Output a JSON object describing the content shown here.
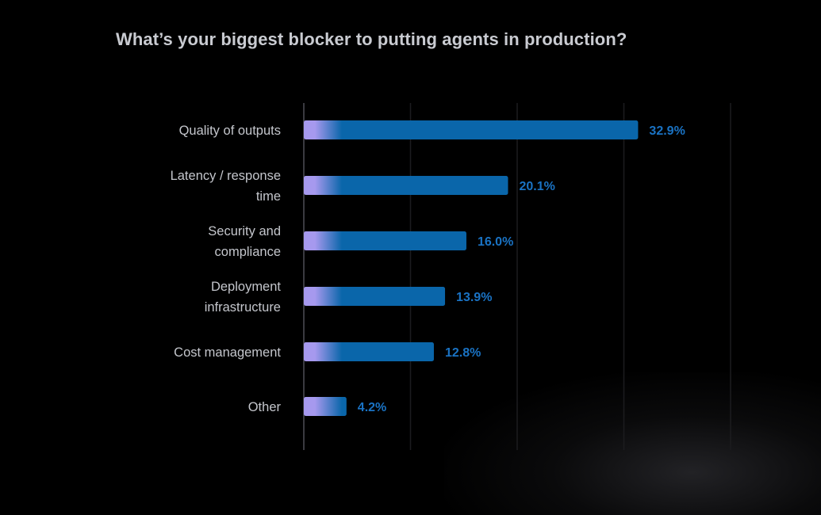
{
  "chart_data": {
    "type": "bar",
    "orientation": "horizontal",
    "title": "What’s your biggest blocker to putting agents in production?",
    "categories": [
      [
        "Quality of outputs"
      ],
      [
        "Latency / response",
        "time"
      ],
      [
        "Security and",
        "compliance"
      ],
      [
        "Deployment",
        "infrastructure"
      ],
      [
        "Cost management"
      ],
      [
        "Other"
      ]
    ],
    "values": [
      32.9,
      20.1,
      16.0,
      13.9,
      12.8,
      4.2
    ],
    "value_labels": [
      "32.9%",
      "20.1%",
      "16.0%",
      "13.9%",
      "12.8%",
      "4.2%"
    ],
    "xlim": [
      0,
      42
    ],
    "gridline_values": [
      10.5,
      21,
      31.5,
      42
    ],
    "xlabel": "",
    "ylabel": "",
    "grid": true,
    "legend": "none"
  },
  "colors": {
    "background": "#000000",
    "bar": "#0a66aa",
    "bar_start": "#a699ee",
    "value_text": "#1a73c4",
    "grid": "#1c1c1f",
    "axis": "#3a3a40"
  }
}
